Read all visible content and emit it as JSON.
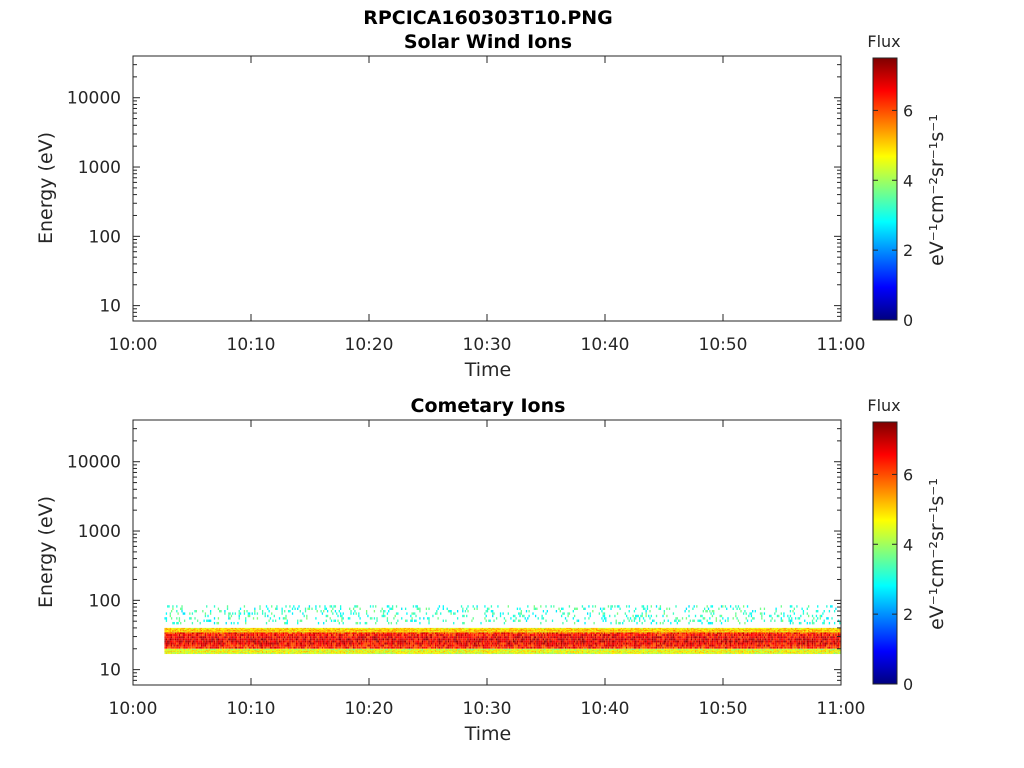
{
  "figure": {
    "title": "RPCICA160303T10.PNG"
  },
  "colormap": {
    "name": "jet",
    "stops": [
      "#00007f",
      "#0000ff",
      "#007fff",
      "#00ffff",
      "#7fff7f",
      "#ffff00",
      "#ff7f00",
      "#ff0000",
      "#7f0000"
    ]
  },
  "chart_data": [
    {
      "type": "heatmap",
      "title": "Solar Wind Ions",
      "xlabel": "Time",
      "ylabel": "Energy (eV)",
      "x_ticks": [
        "10:00",
        "10:10",
        "10:20",
        "10:30",
        "10:40",
        "10:50",
        "11:00"
      ],
      "xlim": [
        "10:00",
        "11:00"
      ],
      "y_scale": "log",
      "y_ticks": [
        "10",
        "100",
        "1000",
        "10000"
      ],
      "ylim": [
        6,
        40000
      ],
      "colorbar": {
        "title": "Flux",
        "label": "eV⁻¹cm⁻²sr⁻¹s⁻¹",
        "ticks": [
          "0",
          "2",
          "4",
          "6"
        ],
        "range": [
          0,
          7.5
        ]
      },
      "bands": []
    },
    {
      "type": "heatmap",
      "title": "Cometary Ions",
      "xlabel": "Time",
      "ylabel": "Energy (eV)",
      "x_ticks": [
        "10:00",
        "10:10",
        "10:20",
        "10:30",
        "10:40",
        "10:50",
        "11:00"
      ],
      "xlim": [
        "10:00",
        "11:00"
      ],
      "y_scale": "log",
      "y_ticks": [
        "10",
        "100",
        "1000",
        "10000"
      ],
      "ylim": [
        6,
        40000
      ],
      "colorbar": {
        "title": "Flux",
        "label": "eV⁻¹cm⁻²sr⁻¹s⁻¹",
        "ticks": [
          "0",
          "2",
          "4",
          "6"
        ],
        "range": [
          0,
          7.5
        ]
      },
      "bands": [
        {
          "time_start": "10:02:40",
          "time_end": "11:00",
          "energy_low": 20,
          "energy_high": 35,
          "flux_level": 6.5
        },
        {
          "time_start": "10:02:40",
          "time_end": "11:00",
          "energy_low": 17,
          "energy_high": 20,
          "flux_level": 4.5
        },
        {
          "time_start": "10:02:40",
          "time_end": "11:00",
          "energy_low": 35,
          "energy_high": 40,
          "flux_level": 5.0
        },
        {
          "time_start": "10:02:40",
          "time_end": "11:00",
          "energy_low": 45,
          "energy_high": 85,
          "flux_level": 3.2,
          "sparse": true
        }
      ]
    }
  ]
}
